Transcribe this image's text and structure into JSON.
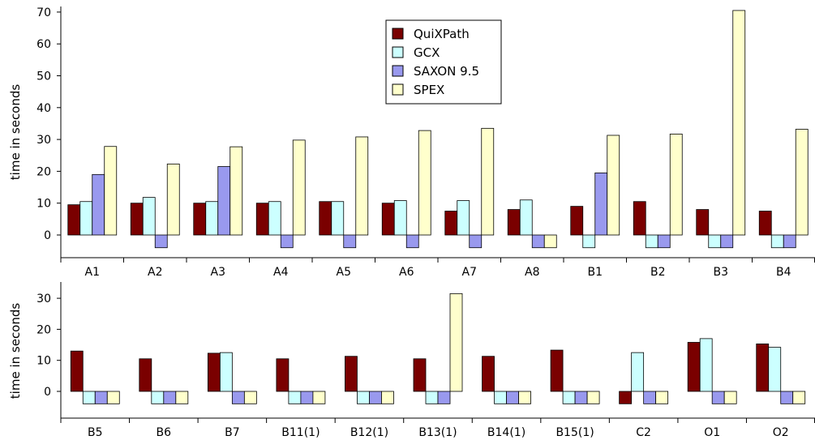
{
  "chart_data": [
    {
      "type": "bar",
      "ylabel": "time in seconds",
      "ylim": [
        -8,
        72
      ],
      "yticks": [
        0,
        10,
        20,
        30,
        40,
        50,
        60,
        70
      ],
      "legend": {
        "position": "top-center"
      },
      "categories": [
        "A1",
        "A2",
        "A3",
        "A4",
        "A5",
        "A6",
        "A7",
        "A8",
        "B1",
        "B2",
        "B3",
        "B4"
      ],
      "series": [
        {
          "name": "QuiXPath",
          "color": "#7a0000",
          "values": [
            9.5,
            10.0,
            10.0,
            10.0,
            10.5,
            10.0,
            7.5,
            8.0,
            9.0,
            10.5,
            8.0,
            7.5
          ]
        },
        {
          "name": "GCX",
          "color": "#ccffff",
          "values": [
            10.5,
            11.8,
            10.5,
            10.5,
            10.5,
            10.8,
            10.8,
            11.0,
            -4.0,
            -4.0,
            -4.0,
            -4.0
          ]
        },
        {
          "name": "SAXON 9.5",
          "color": "#9999ee",
          "values": [
            19.0,
            -4.0,
            21.5,
            -4.0,
            -4.0,
            -4.0,
            -4.0,
            -4.0,
            19.5,
            -4.0,
            -4.0,
            -4.0
          ]
        },
        {
          "name": "SPEX",
          "color": "#ffffcc",
          "values": [
            27.8,
            22.3,
            27.7,
            29.8,
            30.8,
            32.8,
            33.5,
            -4.0,
            31.3,
            31.7,
            70.5,
            33.2
          ]
        }
      ]
    },
    {
      "type": "bar",
      "ylabel": "time in seconds",
      "ylim": [
        -8,
        35
      ],
      "yticks": [
        0,
        10,
        20,
        30
      ],
      "categories": [
        "B5",
        "B6",
        "B7",
        "B11(1)",
        "B12(1)",
        "B13(1)",
        "B14(1)",
        "B15(1)",
        "C2",
        "O1",
        "O2"
      ],
      "series": [
        {
          "name": "QuiXPath",
          "color": "#7a0000",
          "values": [
            13.0,
            10.5,
            12.3,
            10.5,
            11.3,
            10.5,
            11.3,
            13.3,
            -4.0,
            15.8,
            15.3
          ]
        },
        {
          "name": "GCX",
          "color": "#ccffff",
          "values": [
            -4.0,
            -4.0,
            12.5,
            -4.0,
            -4.0,
            -4.0,
            -4.0,
            -4.0,
            12.5,
            17.0,
            14.2
          ]
        },
        {
          "name": "SAXON 9.5",
          "color": "#9999ee",
          "values": [
            -4.0,
            -4.0,
            -4.0,
            -4.0,
            -4.0,
            -4.0,
            -4.0,
            -4.0,
            -4.0,
            -4.0,
            -4.0
          ]
        },
        {
          "name": "SPEX",
          "color": "#ffffcc",
          "values": [
            -4.0,
            -4.0,
            -4.0,
            -4.0,
            -4.0,
            31.5,
            -4.0,
            -4.0,
            -4.0,
            -4.0,
            -4.0
          ]
        }
      ]
    }
  ]
}
